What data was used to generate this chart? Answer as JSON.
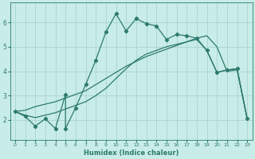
{
  "xlabel": "Humidex (Indice chaleur)",
  "background_color": "#c8ece8",
  "grid_color": "#aed8d2",
  "line_color": "#2d7a6e",
  "xlim": [
    -0.5,
    23.5
  ],
  "ylim": [
    1.2,
    6.8
  ],
  "yticks": [
    2,
    3,
    4,
    5,
    6
  ],
  "xticks": [
    0,
    1,
    2,
    3,
    4,
    5,
    6,
    7,
    8,
    9,
    10,
    11,
    12,
    13,
    14,
    15,
    16,
    17,
    18,
    19,
    20,
    21,
    22,
    23
  ],
  "line_jagged_x": [
    0,
    1,
    2,
    3,
    4,
    5,
    5,
    6,
    7,
    8,
    9,
    10,
    11,
    12,
    13,
    14,
    15,
    16,
    17,
    18,
    19,
    20,
    21,
    22,
    23
  ],
  "line_jagged_y": [
    2.35,
    2.15,
    1.75,
    2.05,
    1.65,
    3.05,
    1.65,
    2.5,
    3.45,
    4.45,
    5.6,
    6.35,
    5.65,
    6.15,
    5.95,
    5.85,
    5.3,
    5.5,
    5.45,
    5.35,
    4.85,
    3.95,
    4.05,
    4.1,
    2.05
  ],
  "line_smooth_x": [
    0,
    1,
    2,
    3,
    4,
    5,
    6,
    7,
    8,
    9,
    10,
    11,
    12,
    13,
    14,
    15,
    16,
    17,
    18,
    19,
    20,
    21,
    22,
    23
  ],
  "line_smooth_y": [
    2.35,
    2.4,
    2.55,
    2.65,
    2.75,
    2.9,
    3.05,
    3.2,
    3.45,
    3.7,
    3.95,
    4.2,
    4.4,
    4.6,
    4.75,
    4.9,
    5.05,
    5.2,
    5.35,
    5.45,
    5.0,
    4.0,
    4.05,
    2.05
  ],
  "line_upper_x": [
    0,
    1,
    2,
    3,
    4,
    5,
    6,
    7,
    8,
    9,
    10,
    11,
    12,
    13,
    14,
    15,
    16,
    17,
    18,
    19,
    20,
    21,
    22,
    23
  ],
  "line_upper_y": [
    2.35,
    2.2,
    2.1,
    2.2,
    2.3,
    2.45,
    2.6,
    2.75,
    3.0,
    3.3,
    3.7,
    4.1,
    4.45,
    4.7,
    4.85,
    5.0,
    5.1,
    5.2,
    5.3,
    4.85,
    3.95,
    4.05,
    4.1,
    2.05
  ]
}
